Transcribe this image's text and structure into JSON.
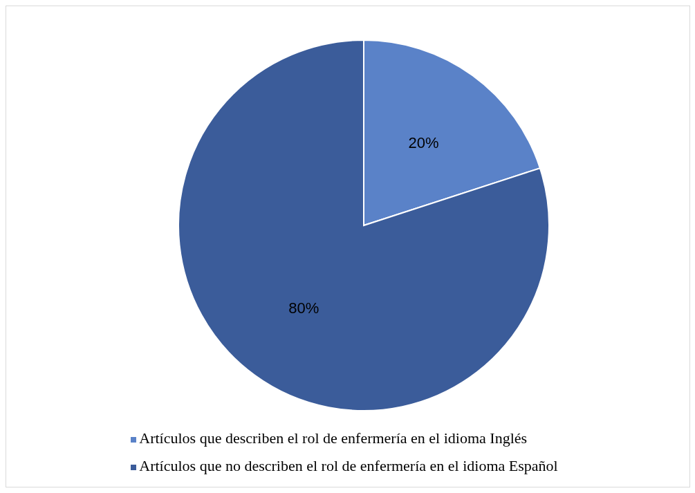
{
  "chart_data": {
    "type": "pie",
    "categories": [
      "Artículos que describen el rol de enfermería en el idioma Inglés",
      "Artículos que no describen el rol de enfermería en el idioma Español"
    ],
    "values": [
      20,
      80
    ],
    "colors": [
      "#5a82c8",
      "#3b5c9a"
    ],
    "value_labels": [
      "20%",
      "80%"
    ],
    "legend": "bottom"
  }
}
